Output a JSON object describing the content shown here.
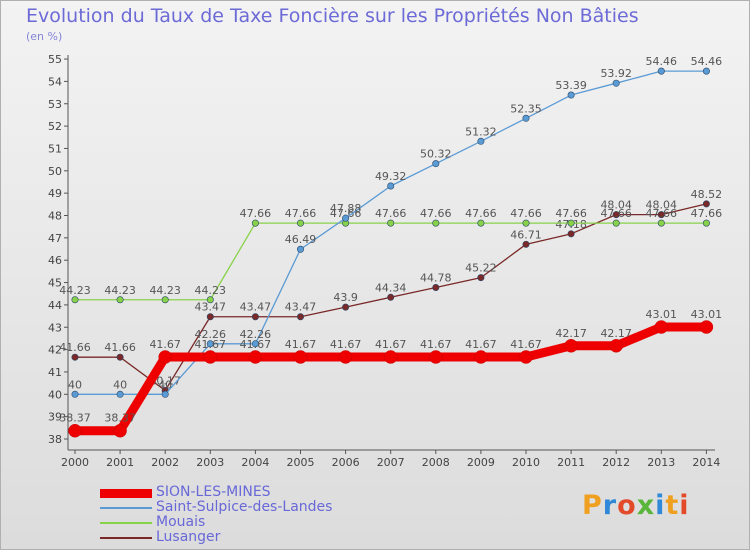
{
  "title": "Evolution du Taux de Taxe Foncière sur les Propriétés Non Bâties",
  "unit": "(en %)",
  "logo": "Proxiti",
  "chart_data": {
    "type": "line",
    "title": "Evolution du Taux de Taxe Foncière sur les Propriétés Non Bâties",
    "ylabel": "(en %)",
    "x": [
      "2000",
      "2001",
      "2002",
      "2003",
      "2004",
      "2005",
      "2006",
      "2007",
      "2008",
      "2009",
      "2010",
      "2011",
      "2012",
      "2013",
      "2014"
    ],
    "ylim": [
      38,
      55
    ],
    "y_ticks": [
      38,
      39,
      40,
      41,
      42,
      43,
      44,
      45,
      46,
      47,
      48,
      49,
      50,
      51,
      52,
      53,
      54,
      55
    ],
    "grid": false,
    "legend_position": "bottom-left",
    "series": [
      {
        "name": "SION-LES-MINES",
        "color": "#ee0000",
        "values": [
          38.37,
          38.37,
          41.67,
          41.67,
          41.67,
          41.67,
          41.67,
          41.67,
          41.67,
          41.67,
          41.67,
          42.17,
          42.17,
          43.01,
          43.01
        ],
        "labels": [
          "38.37",
          "38.37",
          "41.67",
          "41.67",
          "41.67",
          "41.67",
          "41.67",
          "41.67",
          "41.67",
          "41.67",
          "41.67",
          "42.17",
          "42.17",
          "43.01",
          "43.01"
        ]
      },
      {
        "name": "Saint-Sulpice-des-Landes",
        "color": "#5b9bd5",
        "values": [
          40,
          40,
          40,
          42.26,
          42.26,
          46.49,
          47.88,
          49.32,
          50.32,
          51.32,
          52.35,
          53.39,
          53.92,
          54.46,
          54.46
        ],
        "labels": [
          "40",
          "40",
          "40",
          "42.26",
          "42.26",
          "46.49",
          "47.88",
          "49.32",
          "50.32",
          "51.32",
          "52.35",
          "53.39",
          "53.92",
          "54.46",
          "54.46"
        ]
      },
      {
        "name": "Mouais",
        "color": "#88d24a",
        "values": [
          44.23,
          44.23,
          44.23,
          44.23,
          47.66,
          47.66,
          47.66,
          47.66,
          47.66,
          47.66,
          47.66,
          47.66,
          47.66,
          47.66,
          47.66
        ],
        "labels": [
          "44.23",
          "44.23",
          "44.23",
          "44.23",
          "47.66",
          "47.66",
          "47.66",
          "47.66",
          "47.66",
          "47.66",
          "47.66",
          "47.66",
          "47.66",
          "47.66",
          "47.66"
        ]
      },
      {
        "name": "Lusanger",
        "color": "#7a2828",
        "values": [
          41.66,
          41.66,
          40.17,
          43.47,
          43.47,
          43.47,
          43.9,
          44.34,
          44.78,
          45.22,
          46.71,
          47.18,
          48.04,
          48.04,
          48.52
        ],
        "labels": [
          "41.66",
          "41.66",
          "40.17",
          "43.47",
          "43.47",
          "43.47",
          "43.9",
          "44.34",
          "44.78",
          "45.22",
          "46.71",
          "47.18",
          "48.04",
          "48.04",
          "48.52"
        ]
      }
    ]
  }
}
